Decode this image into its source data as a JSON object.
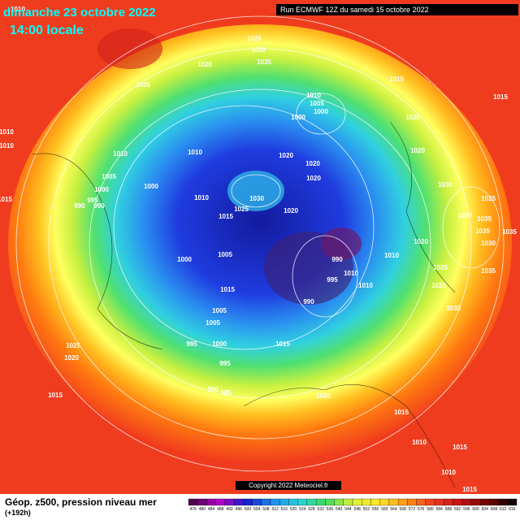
{
  "header": {
    "date": "dimanche 23 octobre 2022",
    "time": "14:00 locale",
    "run": "Run ECMWF 12Z du samedi 15 octobre 2022"
  },
  "isobar_labels": [
    "1010",
    "1025",
    "1030",
    "1035",
    "1020",
    "1025",
    "1015",
    "1010",
    "1005",
    "1000",
    "1000",
    "1010",
    "1010",
    "1010",
    "1010",
    "1020",
    "1020",
    "1020",
    "1020",
    "1020",
    "1005",
    "1000",
    "1000",
    "1030",
    "995",
    "990",
    "990",
    "1010",
    "1020",
    "1025",
    "1015",
    "1030",
    "1015",
    "1025",
    "1030",
    "1035",
    "1035",
    "1030",
    "1035",
    "1020",
    "1000",
    "1005",
    "1010",
    "1025",
    "990",
    "1010",
    "995",
    "1010",
    "1035",
    "1015",
    "1025",
    "990",
    "1005",
    "1030",
    "1005",
    "1015",
    "995",
    "1000",
    "1025",
    "1020",
    "995",
    "990",
    "985",
    "1015",
    "1020",
    "1015",
    "1010",
    "1015",
    "1010",
    "1015",
    "1015"
  ],
  "footer": {
    "copyright": "Copyright 2022 Meteociel.fr",
    "title": "Géop. z500, pression niveau mer",
    "lead": "(+192h)",
    "colorbar": [
      476,
      480,
      484,
      488,
      492,
      496,
      500,
      504,
      508,
      512,
      516,
      520,
      524,
      528,
      532,
      536,
      540,
      544,
      548,
      552,
      556,
      560,
      564,
      568,
      572,
      576,
      580,
      584,
      588,
      592,
      596,
      600,
      604,
      608,
      612,
      616
    ]
  }
}
